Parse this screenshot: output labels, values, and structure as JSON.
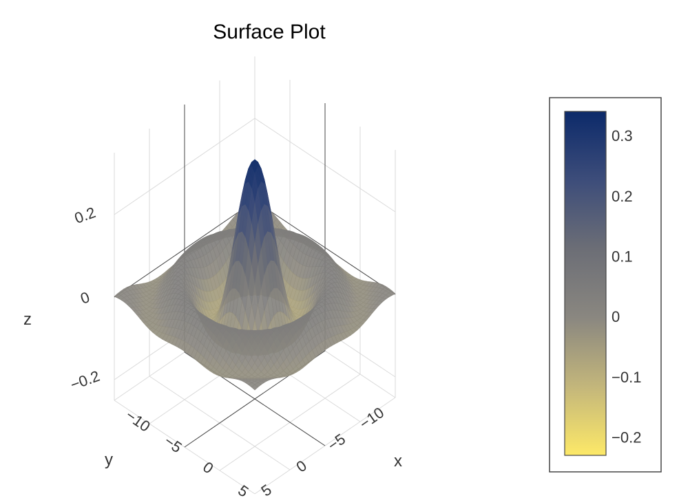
{
  "chart_data": {
    "type": "surface",
    "title": "Surface Plot",
    "xlabel": "x",
    "ylabel": "y",
    "zlabel": "z",
    "x_ticks": [
      "−10",
      "−5",
      "0",
      "5"
    ],
    "y_ticks": [
      "−10",
      "−5",
      "0",
      "5"
    ],
    "z_ticks": [
      "−0.2",
      "0",
      "0.2"
    ],
    "xlim": [
      -10,
      10
    ],
    "ylim": [
      -10,
      10
    ],
    "zlim": [
      -0.25,
      0.35
    ],
    "colorscale": {
      "name": "cividis-like",
      "stops": [
        "#fde968",
        "#c3b67b",
        "#8a8780",
        "#6c6e76",
        "#3d4d7a",
        "#0c2a6a"
      ],
      "ticks": [
        "0.3",
        "0.2",
        "0.1",
        "0",
        "−0.1",
        "−0.2"
      ],
      "tick_values": [
        0.3,
        0.2,
        0.1,
        0,
        -0.1,
        -0.2
      ],
      "range": [
        -0.23,
        0.34
      ]
    },
    "grid": true,
    "legend": "colorbar-right"
  }
}
